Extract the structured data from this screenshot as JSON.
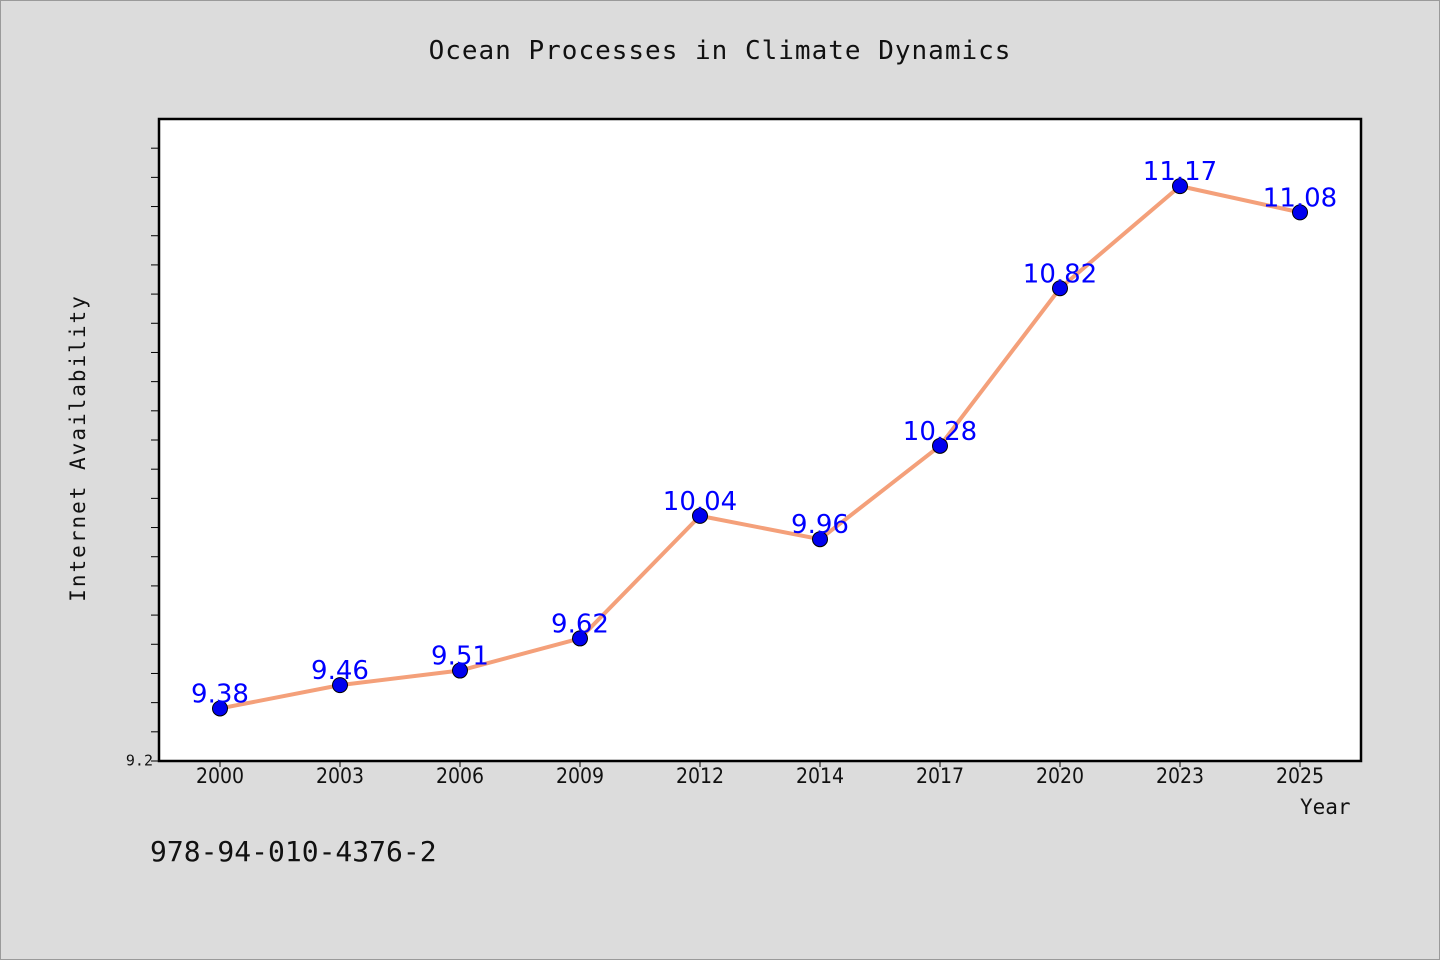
{
  "chart_data": {
    "type": "line",
    "title": "Ocean Processes in Climate Dynamics",
    "xlabel": "Year",
    "ylabel": "Internet Availability",
    "categories": [
      "2000",
      "2003",
      "2006",
      "2009",
      "2012",
      "2014",
      "2017",
      "2020",
      "2023",
      "2025"
    ],
    "series": [
      {
        "values": [
          9.38,
          9.46,
          9.51,
          9.62,
          10.04,
          9.96,
          10.28,
          10.82,
          11.17,
          11.08
        ],
        "labels": [
          "9.38",
          "9.46",
          "9.51",
          "9.62",
          "10.04",
          "9.96",
          "10.28",
          "10.82",
          "11.17",
          "11.08"
        ],
        "line_color": "#f4a07a",
        "marker_color": "#0000ee",
        "label_color": "#0000ff"
      }
    ],
    "ylim": [
      9.2,
      11.4
    ],
    "y_tick_label": "9.2",
    "y_minor_tick_step": 0.1,
    "grid": false,
    "legend": "none"
  },
  "annotation": "978-94-010-4376-2",
  "colors": {
    "background": "#dcdcdc",
    "plot_background": "#ffffff",
    "axis": "#000000"
  }
}
